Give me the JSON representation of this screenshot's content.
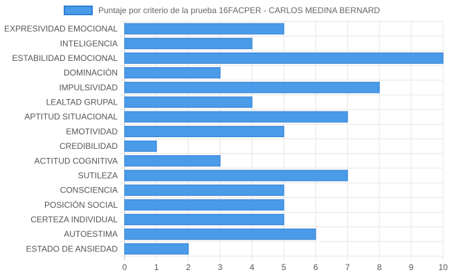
{
  "chart_data": {
    "type": "bar",
    "orientation": "horizontal",
    "legend": "top",
    "grid": true,
    "colors": {
      "bar_fill": "#4a9be8",
      "bar_border": "#2e7fd6",
      "grid": "#e6e6e6"
    },
    "series": [
      {
        "name": "Puntaje por criterio de la prueba 16FACPER - CARLOS MEDINA BERNARD",
        "values": [
          5,
          4,
          10,
          3,
          8,
          4,
          7,
          5,
          1,
          3,
          7,
          5,
          5,
          5,
          6,
          2
        ]
      }
    ],
    "categories": [
      "EXPRESIVIDAD EMOCIONAL",
      "INTELIGENCIA",
      "ESTABILIDAD EMOCIONAL",
      "DOMINACIÓN",
      "IMPULSIVIDAD",
      "LEALTAD GRUPAL",
      "APTITUD SITUACIONAL",
      "EMOTIVIDAD",
      "CREDIBILIDAD",
      "ACTITUD COGNITIVA",
      "SUTILEZA",
      "CONSCIENCIA",
      "POSICIÓN SOCIAL",
      "CERTEZA INDIVIDUAL",
      "AUTOESTIMA",
      "ESTADO DE ANSIEDAD"
    ],
    "xlim": [
      0,
      10
    ],
    "xticks": [
      "0",
      "1",
      "2",
      "3",
      "4",
      "5",
      "6",
      "7",
      "8",
      "9",
      "10"
    ]
  }
}
